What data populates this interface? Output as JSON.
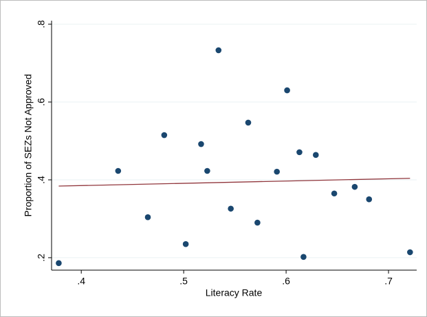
{
  "chart_data": {
    "type": "scatter",
    "x_label": "Literacy Rate",
    "y_label": "Proportion of SEZs Not Approved",
    "xlim": [
      0.371,
      0.7275
    ],
    "ylim": [
      0.168,
      0.809
    ],
    "xticks": [
      {
        "value": 0.4,
        "label": ".4"
      },
      {
        "value": 0.5,
        "label": ".5"
      },
      {
        "value": 0.6,
        "label": ".6"
      },
      {
        "value": 0.7,
        "label": ".7"
      }
    ],
    "yticks": [
      {
        "value": 0.2,
        "label": ".2"
      },
      {
        "value": 0.4,
        "label": ".4"
      },
      {
        "value": 0.6,
        "label": ".6"
      },
      {
        "value": 0.8,
        "label": ".8"
      }
    ],
    "grid": true,
    "series": [
      {
        "type": "scatter",
        "color": "#1a476f",
        "x": [
          0.378,
          0.436,
          0.465,
          0.481,
          0.502,
          0.517,
          0.523,
          0.534,
          0.546,
          0.563,
          0.572,
          0.591,
          0.601,
          0.613,
          0.617,
          0.629,
          0.647,
          0.667,
          0.681,
          0.721
        ],
        "values": [
          0.186,
          0.423,
          0.304,
          0.515,
          0.235,
          0.492,
          0.423,
          0.733,
          0.326,
          0.547,
          0.29,
          0.421,
          0.63,
          0.471,
          0.202,
          0.464,
          0.365,
          0.382,
          0.35,
          0.214
        ]
      },
      {
        "type": "line",
        "color": "#90353b",
        "x": [
          0.378,
          0.721
        ],
        "values": [
          0.384,
          0.404
        ]
      }
    ]
  }
}
